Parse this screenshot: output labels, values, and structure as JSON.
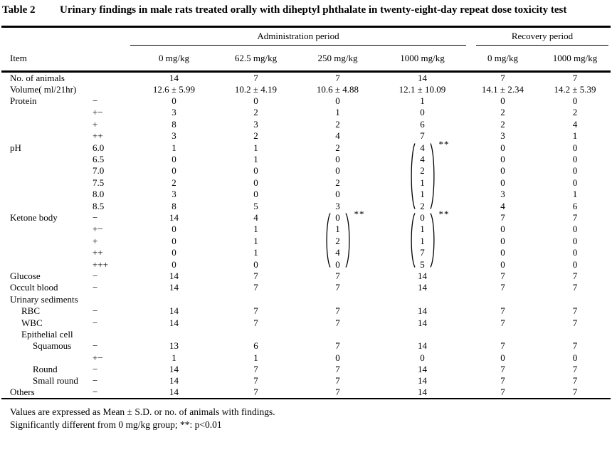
{
  "colors": {
    "text": "#000000",
    "background": "#ffffff",
    "rule": "#000000"
  },
  "title": {
    "label": "Table 2",
    "text": "Urinary findings in male rats treated orally with diheptyl phthalate in twenty-eight-day repeat dose toxicity test"
  },
  "header": {
    "item_col": "Item",
    "groups": [
      {
        "label": "Administration period",
        "columns": [
          "0 mg/kg",
          "62.5 mg/kg",
          "250 mg/kg",
          "1000 mg/kg"
        ]
      },
      {
        "label": "Recovery period",
        "columns": [
          "0 mg/kg",
          "1000 mg/kg"
        ]
      }
    ]
  },
  "rows": [
    {
      "item": "No. of animals",
      "indent": 0,
      "grade": "",
      "values": [
        "14",
        "7",
        "7",
        "14",
        "7",
        "7"
      ]
    },
    {
      "item": "Volume( ml/21hr)",
      "indent": 0,
      "grade": "",
      "values": [
        "12.6 ± 5.99",
        "10.2 ± 4.19",
        "10.6 ± 4.88",
        "12.1 ± 10.09",
        "14.1 ± 2.34",
        "14.2 ± 5.39"
      ]
    },
    {
      "item": "Protein",
      "indent": 0,
      "grade": "−",
      "values": [
        "0",
        "0",
        "0",
        "1",
        "0",
        "0"
      ]
    },
    {
      "item": "",
      "indent": 0,
      "grade": "+−",
      "values": [
        "3",
        "2",
        "1",
        "0",
        "2",
        "2"
      ]
    },
    {
      "item": "",
      "indent": 0,
      "grade": "+",
      "values": [
        "8",
        "3",
        "2",
        "6",
        "2",
        "4"
      ]
    },
    {
      "item": "",
      "indent": 0,
      "grade": "++",
      "values": [
        "3",
        "2",
        "4",
        "7",
        "3",
        "1"
      ]
    },
    {
      "item": "pH",
      "indent": 0,
      "grade": "6.0",
      "values": [
        "1",
        "1",
        "2",
        "4",
        "0",
        "0"
      ]
    },
    {
      "item": "",
      "indent": 0,
      "grade": "6.5",
      "values": [
        "0",
        "1",
        "0",
        "4",
        "0",
        "0"
      ]
    },
    {
      "item": "",
      "indent": 0,
      "grade": "7.0",
      "values": [
        "0",
        "0",
        "0",
        "2",
        "0",
        "0"
      ]
    },
    {
      "item": "",
      "indent": 0,
      "grade": "7.5",
      "values": [
        "2",
        "0",
        "2",
        "1",
        "0",
        "0"
      ]
    },
    {
      "item": "",
      "indent": 0,
      "grade": "8.0",
      "values": [
        "3",
        "0",
        "0",
        "1",
        "3",
        "1"
      ]
    },
    {
      "item": "",
      "indent": 0,
      "grade": "8.5",
      "values": [
        "8",
        "5",
        "3",
        "2",
        "4",
        "6"
      ]
    },
    {
      "item": "Ketone body",
      "indent": 0,
      "grade": "−",
      "values": [
        "14",
        "4",
        "0",
        "0",
        "7",
        "7"
      ]
    },
    {
      "item": "",
      "indent": 0,
      "grade": "+−",
      "values": [
        "0",
        "1",
        "1",
        "1",
        "0",
        "0"
      ]
    },
    {
      "item": "",
      "indent": 0,
      "grade": "+",
      "values": [
        "0",
        "1",
        "2",
        "1",
        "0",
        "0"
      ]
    },
    {
      "item": "",
      "indent": 0,
      "grade": "++",
      "values": [
        "0",
        "1",
        "4",
        "7",
        "0",
        "0"
      ]
    },
    {
      "item": "",
      "indent": 0,
      "grade": "+++",
      "values": [
        "0",
        "0",
        "0",
        "5",
        "0",
        "0"
      ]
    },
    {
      "item": "Glucose",
      "indent": 0,
      "grade": "−",
      "values": [
        "14",
        "7",
        "7",
        "14",
        "7",
        "7"
      ]
    },
    {
      "item": "Occult blood",
      "indent": 0,
      "grade": "−",
      "values": [
        "14",
        "7",
        "7",
        "14",
        "7",
        "7"
      ]
    },
    {
      "item": "Urinary sediments",
      "indent": 0,
      "grade": "",
      "values": [
        "",
        "",
        "",
        "",
        "",
        ""
      ]
    },
    {
      "item": "RBC",
      "indent": 1,
      "grade": "−",
      "values": [
        "14",
        "7",
        "7",
        "14",
        "7",
        "7"
      ]
    },
    {
      "item": "WBC",
      "indent": 1,
      "grade": "−",
      "values": [
        "14",
        "7",
        "7",
        "14",
        "7",
        "7"
      ]
    },
    {
      "item": "Epithelial cell",
      "indent": 1,
      "grade": "",
      "values": [
        "",
        "",
        "",
        "",
        "",
        ""
      ]
    },
    {
      "item": "Squamous",
      "indent": 2,
      "grade": "−",
      "values": [
        "13",
        "6",
        "7",
        "14",
        "7",
        "7"
      ]
    },
    {
      "item": "",
      "indent": 2,
      "grade": "+−",
      "values": [
        "1",
        "1",
        "0",
        "0",
        "0",
        "0"
      ]
    },
    {
      "item": "Round",
      "indent": 2,
      "grade": "−",
      "values": [
        "14",
        "7",
        "7",
        "14",
        "7",
        "7"
      ]
    },
    {
      "item": "Small round",
      "indent": 2,
      "grade": "−",
      "values": [
        "14",
        "7",
        "7",
        "14",
        "7",
        "7"
      ]
    },
    {
      "item": "Others",
      "indent": 0,
      "grade": "−",
      "values": [
        "14",
        "7",
        "7",
        "14",
        "7",
        "7"
      ]
    }
  ],
  "brackets": [
    {
      "row": 6,
      "col": 3,
      "span": 6,
      "marker": "**"
    },
    {
      "row": 12,
      "col": 2,
      "span": 5,
      "marker": "**"
    },
    {
      "row": 12,
      "col": 3,
      "span": 5,
      "marker": "**"
    }
  ],
  "footnotes": [
    "Values are expressed as Mean ± S.D. or no. of animals with findings.",
    "Significantly different from 0 mg/kg group; **: p<0.01"
  ]
}
